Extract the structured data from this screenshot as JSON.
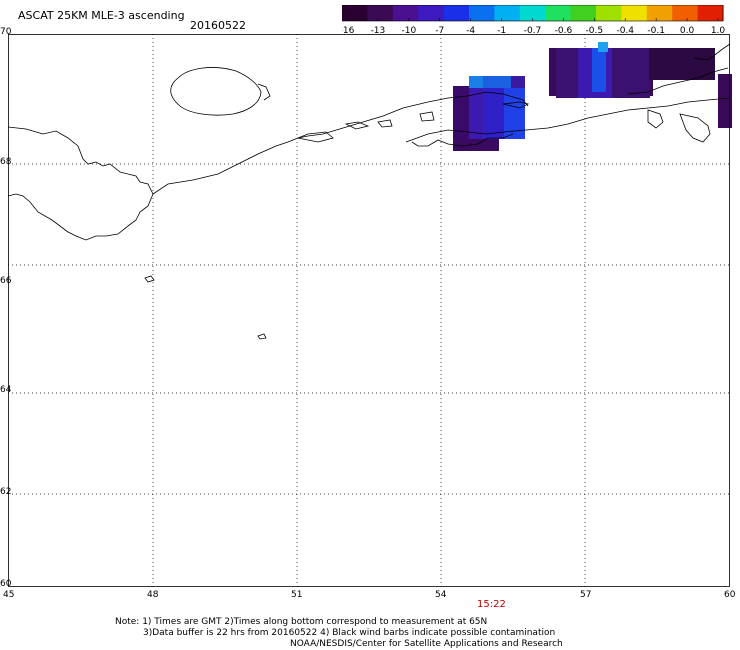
{
  "header": {
    "title": "ASCAT 25KM MLE-3 ascending",
    "date": "20160522"
  },
  "colorbar": {
    "labels": [
      "-16",
      "-13",
      "-10",
      "-7",
      "-4",
      "-1",
      "-0.7",
      "-0.6",
      "-0.5",
      "-0.4",
      "-0.1",
      "0.0",
      "1.0"
    ],
    "colors": [
      "#2a0030",
      "#3a0a55",
      "#4a1090",
      "#3c1ac0",
      "#1a30e8",
      "#0a70f0",
      "#00b0f0",
      "#00d8d0",
      "#20e060",
      "#40d020",
      "#a0e000",
      "#f0e000",
      "#f0a000",
      "#f06000",
      "#e02000"
    ]
  },
  "map": {
    "lat_labels": [
      "70",
      "68",
      "66",
      "64",
      "62",
      "60"
    ],
    "lon_labels": [
      "45",
      "48",
      "51",
      "54",
      "57",
      "60"
    ],
    "lat_range": [
      60,
      70
    ],
    "lon_range": [
      45,
      60
    ],
    "grid": "dotted",
    "coastline_color": "#000000"
  },
  "time_label": "15:22",
  "notes": {
    "line1": "Note: 1) Times are GMT 2)Times along bottom correspond to measurement at 65N",
    "line2": "3)Data buffer is 22 hrs from 20160522 4) Black wind barbs indicate possible contamination",
    "line3": "NOAA/NESDIS/Center for Satellite Applications and Research"
  }
}
